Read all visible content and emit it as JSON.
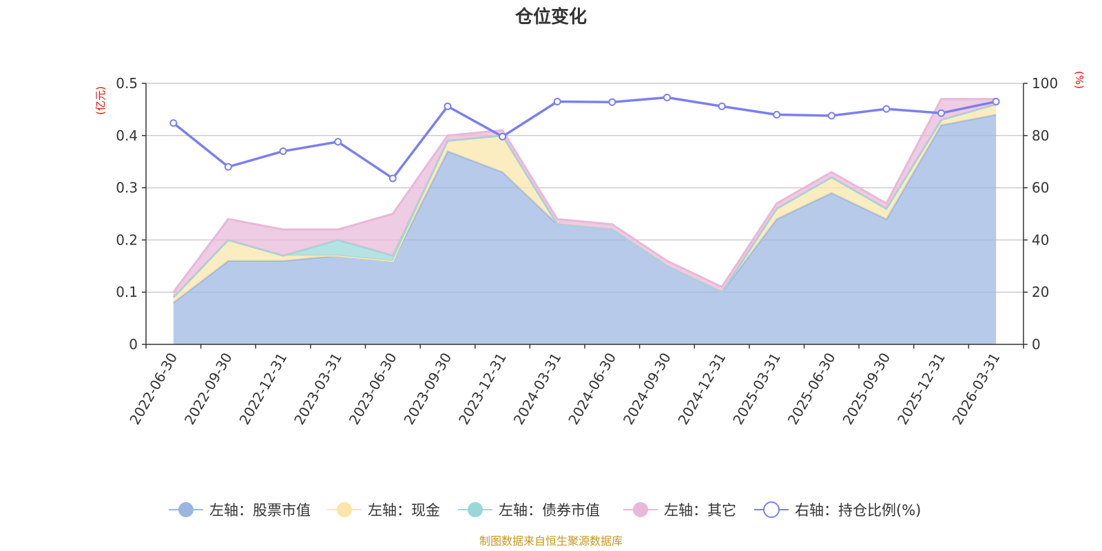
{
  "chart_data": {
    "type": "area",
    "title": "仓位变化",
    "source": "制图数据来自恒生聚源数据库",
    "categories": [
      "2022-06-30",
      "2022-09-30",
      "2022-12-31",
      "2023-03-31",
      "2023-06-30",
      "2023-09-30",
      "2023-12-31",
      "2024-03-31",
      "2024-06-30",
      "2024-09-30",
      "2024-12-31",
      "2025-03-31",
      "2025-06-30",
      "2025-09-30",
      "2025-12-31",
      "2026-03-31"
    ],
    "left_axis": {
      "unit": "(亿元)",
      "min": 0,
      "max": 0.5,
      "ticks": [
        "0",
        "0.1",
        "0.2",
        "0.3",
        "0.4",
        "0.5"
      ]
    },
    "right_axis": {
      "unit": "(%)",
      "min": 0,
      "max": 100,
      "ticks": [
        "0",
        "20",
        "40",
        "60",
        "80",
        "100"
      ]
    },
    "grid": true,
    "legend_position": "bottom",
    "series": [
      {
        "name": "左轴：股票市值",
        "axis": "left",
        "kind": "stacked-area",
        "color": "#9bb6e0",
        "values": [
          0.08,
          0.16,
          0.16,
          0.17,
          0.16,
          0.37,
          0.33,
          0.23,
          0.22,
          0.15,
          0.1,
          0.24,
          0.29,
          0.24,
          0.42,
          0.44
        ]
      },
      {
        "name": "左轴：现金",
        "axis": "left",
        "kind": "stacked-area",
        "color": "#fae6a8",
        "values": [
          0.01,
          0.04,
          0.01,
          0.0,
          0.0,
          0.02,
          0.07,
          0.0,
          0.0,
          0.0,
          0.0,
          0.02,
          0.03,
          0.02,
          0.01,
          0.02
        ]
      },
      {
        "name": "左轴：债券市值",
        "axis": "left",
        "kind": "stacked-area",
        "color": "#98d8d8",
        "values": [
          0.0,
          0.0,
          0.0,
          0.03,
          0.01,
          0.0,
          0.0,
          0.0,
          0.0,
          0.0,
          0.0,
          0.0,
          0.0,
          0.0,
          0.0,
          0.0
        ]
      },
      {
        "name": "左轴：其它",
        "axis": "left",
        "kind": "stacked-area",
        "color": "#e8b8d8",
        "values": [
          0.01,
          0.04,
          0.05,
          0.02,
          0.08,
          0.01,
          0.01,
          0.01,
          0.01,
          0.01,
          0.01,
          0.01,
          0.01,
          0.01,
          0.04,
          0.01
        ]
      },
      {
        "name": "右轴：持仓比例(%)",
        "axis": "right",
        "kind": "line",
        "color": "#7a7ff0",
        "values": [
          84.8,
          68.0,
          74.0,
          77.6,
          63.6,
          91.2,
          79.6,
          93.0,
          92.8,
          94.6,
          91.2,
          88.0,
          87.6,
          90.2,
          88.6,
          93.0
        ]
      }
    ]
  }
}
